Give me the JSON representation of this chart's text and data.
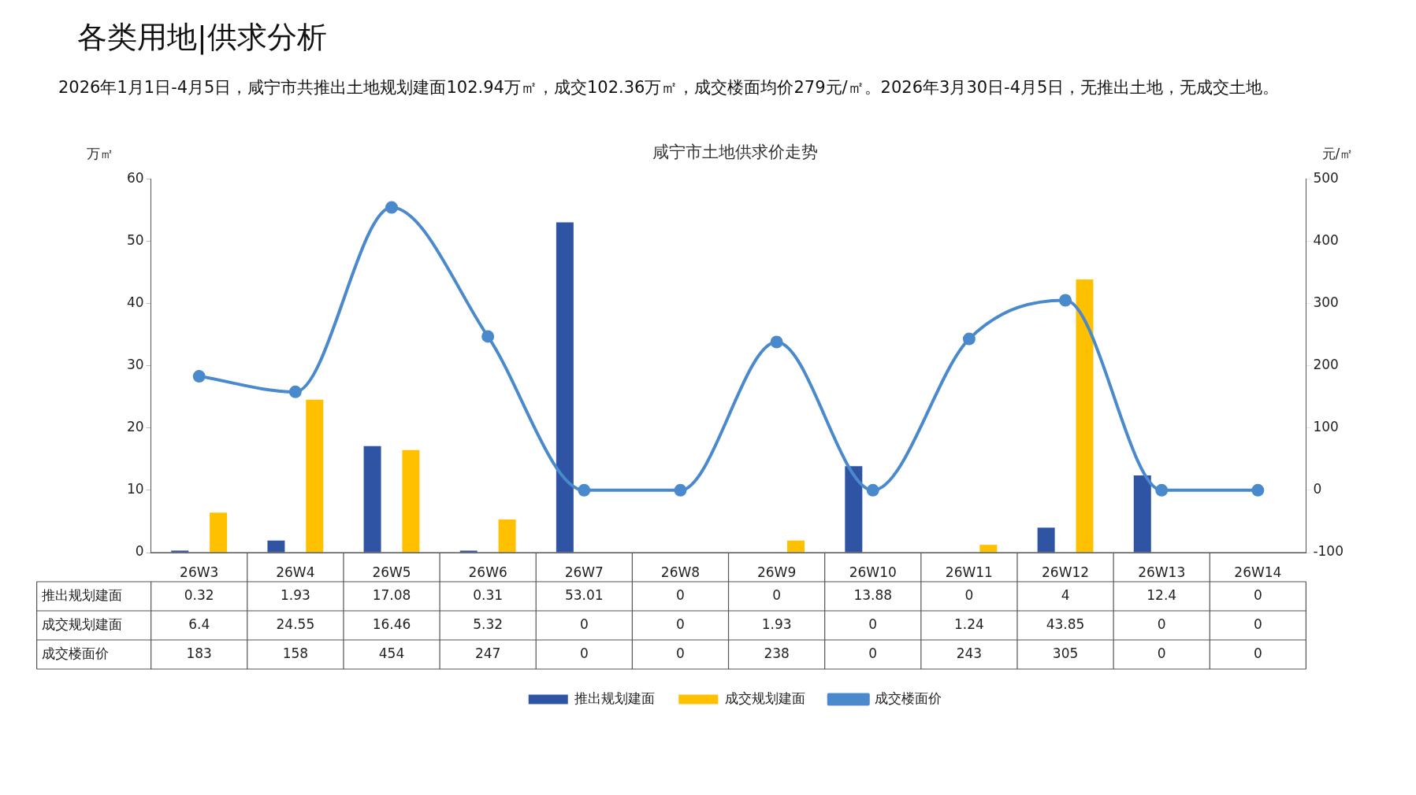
{
  "chart_data": {
    "type": "bar",
    "title": "咸宁市土地供求价走势",
    "subtitle": "2026年1月1日-4月5日，咸宁市共推出土地规划建面102.94万㎡，成交102.36万㎡，成交楼面均价279元/㎡。2026年3月30日-4月5日，无推出土地，无成交土地。",
    "annotations": [
      "各类用地|供求分析"
    ],
    "categories": [
      "26W3",
      "26W4",
      "26W5",
      "26W6",
      "26W7",
      "26W8",
      "26W9",
      "26W10",
      "26W11",
      "26W12",
      "26W13",
      "26W14"
    ],
    "series": [
      {
        "name": "推出规划建面",
        "color": "#2e54a3",
        "values": [
          0.32,
          1.93,
          17.08,
          0.31,
          53.01,
          0,
          0,
          13.88,
          0,
          4,
          12.4,
          0
        ]
      },
      {
        "name": "成交规划建面",
        "color": "#ffc000",
        "values": [
          6.4,
          24.55,
          16.46,
          5.32,
          0,
          0,
          1.93,
          0,
          1.24,
          43.85,
          0,
          0
        ]
      },
      {
        "name": "成交楼面价",
        "type": "line",
        "axis": "y2",
        "color": "#4a89cc",
        "values": [
          183,
          158,
          454,
          247,
          0,
          0,
          238,
          0,
          243,
          305,
          0,
          0
        ]
      }
    ],
    "ylabel": "万㎡",
    "y2label": "元/㎡",
    "ylim": [
      0,
      60
    ],
    "yticks": [
      0,
      10,
      20,
      30,
      40,
      50,
      60
    ],
    "y2lim": [
      -100,
      500
    ],
    "y2ticks": [
      -100,
      0,
      100,
      200,
      300,
      400,
      500
    ],
    "data_labels": true,
    "legend": "bottom",
    "grid": false,
    "marker": "circle"
  }
}
